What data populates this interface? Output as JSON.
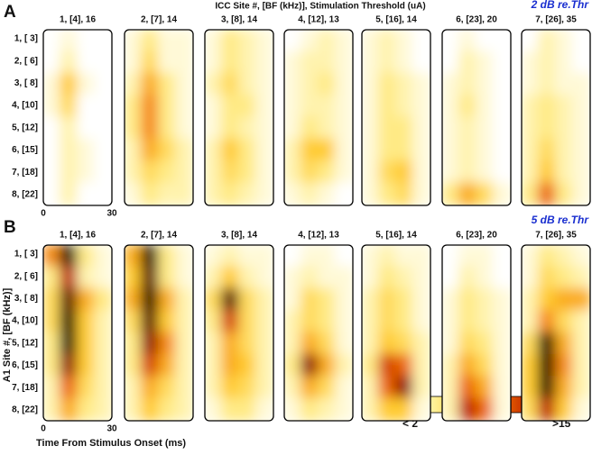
{
  "title": "ICC Site #, [BF (kHz)], Stimulation Threshold (uA)",
  "y_axis_label": "A1 Site #, [BF (kHz)]",
  "x_axis_label": "Time From Stimulus Onset (ms)",
  "xlim": [
    0,
    30
  ],
  "row_labels": [
    "1, [ 3]",
    "2, [ 6]",
    "3, [ 8]",
    "4, [10]",
    "5, [12]",
    "6, [15]",
    "7, [18]",
    "8, [22]"
  ],
  "colorbar": {
    "range": [
      2,
      15
    ],
    "min_label": "< 2",
    "max_label": ">15"
  },
  "panels": [
    {
      "letter": "A",
      "level": "2 dB re.Thr",
      "columns": [
        {
          "label": "1, [4], 16",
          "grid": [
            [
              2,
              3,
              2,
              2
            ],
            [
              2,
              4,
              2,
              2
            ],
            [
              3,
              7,
              3,
              2
            ],
            [
              3,
              6,
              2,
              2
            ],
            [
              2,
              4,
              2,
              2
            ],
            [
              2,
              4,
              3,
              2
            ],
            [
              2,
              4,
              3,
              2
            ],
            [
              2,
              4,
              2,
              2
            ]
          ]
        },
        {
          "label": "2, [7], 14",
          "grid": [
            [
              3,
              5,
              3,
              3
            ],
            [
              3,
              6,
              3,
              3
            ],
            [
              4,
              8,
              5,
              3
            ],
            [
              5,
              9,
              5,
              3
            ],
            [
              5,
              9,
              5,
              3
            ],
            [
              4,
              8,
              6,
              4
            ],
            [
              4,
              6,
              5,
              4
            ],
            [
              3,
              5,
              4,
              4
            ]
          ]
        },
        {
          "label": "3, [8], 14",
          "grid": [
            [
              3,
              5,
              4,
              3
            ],
            [
              3,
              5,
              4,
              3
            ],
            [
              4,
              6,
              4,
              3
            ],
            [
              3,
              5,
              5,
              3
            ],
            [
              3,
              5,
              4,
              3
            ],
            [
              4,
              7,
              5,
              3
            ],
            [
              4,
              6,
              5,
              3
            ],
            [
              4,
              5,
              4,
              3
            ]
          ]
        },
        {
          "label": "4, [12], 13",
          "grid": [
            [
              2,
              3,
              4,
              3
            ],
            [
              3,
              4,
              4,
              3
            ],
            [
              3,
              4,
              5,
              3
            ],
            [
              3,
              4,
              4,
              3
            ],
            [
              3,
              5,
              4,
              3
            ],
            [
              4,
              7,
              7,
              3
            ],
            [
              4,
              6,
              5,
              3
            ],
            [
              3,
              4,
              3,
              2
            ]
          ]
        },
        {
          "label": "5, [16], 14",
          "grid": [
            [
              3,
              4,
              3,
              2
            ],
            [
              3,
              4,
              3,
              2
            ],
            [
              3,
              5,
              4,
              3
            ],
            [
              3,
              5,
              4,
              3
            ],
            [
              3,
              5,
              5,
              3
            ],
            [
              3,
              5,
              5,
              3
            ],
            [
              3,
              6,
              7,
              3
            ],
            [
              3,
              5,
              6,
              3
            ]
          ]
        },
        {
          "label": "6, [23], 20",
          "grid": [
            [
              2,
              3,
              2,
              2
            ],
            [
              2,
              4,
              3,
              2
            ],
            [
              3,
              4,
              3,
              2
            ],
            [
              3,
              5,
              3,
              2
            ],
            [
              3,
              4,
              3,
              2
            ],
            [
              3,
              4,
              3,
              2
            ],
            [
              3,
              4,
              3,
              2
            ],
            [
              5,
              8,
              6,
              3
            ]
          ]
        },
        {
          "label": "7, [26], 35",
          "grid": [
            [
              2,
              4,
              3,
              2
            ],
            [
              3,
              4,
              3,
              2
            ],
            [
              3,
              4,
              3,
              3
            ],
            [
              4,
              5,
              4,
              3
            ],
            [
              4,
              5,
              4,
              3
            ],
            [
              4,
              6,
              4,
              3
            ],
            [
              4,
              7,
              4,
              3
            ],
            [
              5,
              10,
              5,
              3
            ]
          ]
        }
      ]
    },
    {
      "letter": "B",
      "level": "5 dB re.Thr",
      "columns": [
        {
          "label": "1, [4], 16",
          "grid": [
            [
              9,
              15,
              5,
              3
            ],
            [
              5,
              12,
              4,
              3
            ],
            [
              6,
              14,
              8,
              5
            ],
            [
              6,
              15,
              7,
              4
            ],
            [
              5,
              15,
              7,
              4
            ],
            [
              5,
              13,
              7,
              4
            ],
            [
              4,
              10,
              6,
              4
            ],
            [
              4,
              8,
              5,
              4
            ]
          ]
        },
        {
          "label": "2, [7], 14",
          "grid": [
            [
              8,
              15,
              5,
              3
            ],
            [
              7,
              14,
              5,
              3
            ],
            [
              8,
              15,
              8,
              4
            ],
            [
              6,
              14,
              7,
              4
            ],
            [
              5,
              13,
              9,
              4
            ],
            [
              5,
              11,
              8,
              4
            ],
            [
              4,
              8,
              6,
              4
            ],
            [
              4,
              7,
              5,
              4
            ]
          ]
        },
        {
          "label": "3, [8], 14",
          "grid": [
            [
              3,
              4,
              3,
              3
            ],
            [
              4,
              7,
              4,
              3
            ],
            [
              6,
              14,
              6,
              4
            ],
            [
              5,
              11,
              6,
              4
            ],
            [
              4,
              8,
              6,
              4
            ],
            [
              4,
              8,
              7,
              4
            ],
            [
              4,
              7,
              6,
              4
            ],
            [
              3,
              5,
              5,
              3
            ]
          ]
        },
        {
          "label": "4, [12], 13",
          "grid": [
            [
              2,
              3,
              3,
              2
            ],
            [
              3,
              4,
              3,
              3
            ],
            [
              3,
              6,
              5,
              3
            ],
            [
              4,
              6,
              5,
              3
            ],
            [
              4,
              8,
              6,
              3
            ],
            [
              5,
              13,
              8,
              4
            ],
            [
              4,
              8,
              6,
              3
            ],
            [
              3,
              5,
              4,
              3
            ]
          ]
        },
        {
          "label": "5, [16], 14",
          "grid": [
            [
              3,
              4,
              3,
              3
            ],
            [
              3,
              5,
              4,
              3
            ],
            [
              4,
              6,
              5,
              3
            ],
            [
              4,
              6,
              5,
              3
            ],
            [
              4,
              7,
              6,
              4
            ],
            [
              5,
              11,
              10,
              4
            ],
            [
              4,
              10,
              13,
              4
            ],
            [
              4,
              7,
              7,
              3
            ]
          ]
        },
        {
          "label": "6, [23], 20",
          "grid": [
            [
              2,
              3,
              3,
              2
            ],
            [
              2,
              4,
              3,
              2
            ],
            [
              3,
              5,
              4,
              3
            ],
            [
              3,
              5,
              4,
              3
            ],
            [
              3,
              6,
              5,
              3
            ],
            [
              4,
              8,
              6,
              3
            ],
            [
              4,
              10,
              8,
              3
            ],
            [
              4,
              12,
              10,
              3
            ]
          ]
        },
        {
          "label": "7, [26], 35",
          "grid": [
            [
              3,
              5,
              4,
              3
            ],
            [
              3,
              6,
              5,
              4
            ],
            [
              4,
              7,
              8,
              8
            ],
            [
              4,
              9,
              6,
              4
            ],
            [
              6,
              15,
              8,
              4
            ],
            [
              7,
              15,
              9,
              4
            ],
            [
              7,
              15,
              8,
              4
            ],
            [
              6,
              12,
              7,
              3
            ]
          ]
        }
      ]
    }
  ]
}
